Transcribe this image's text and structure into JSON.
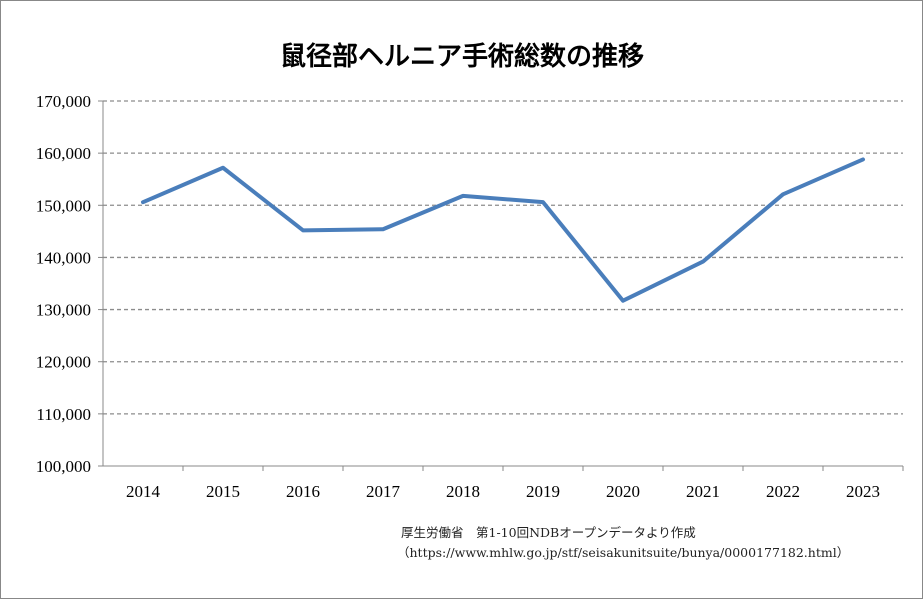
{
  "chart_data": {
    "type": "line",
    "title": "鼠径部ヘルニア手術総数の推移",
    "xlabel": "",
    "ylabel": "",
    "categories": [
      "2014",
      "2015",
      "2016",
      "2017",
      "2018",
      "2019",
      "2020",
      "2021",
      "2022",
      "2023"
    ],
    "series": [
      {
        "values": [
          150600,
          157200,
          145200,
          145400,
          151800,
          150600,
          131700,
          139200,
          152100,
          158800
        ],
        "color": "#4a7ebb"
      }
    ],
    "ylim": [
      100000,
      170000
    ],
    "yticks": [
      100000,
      110000,
      120000,
      130000,
      140000,
      150000,
      160000,
      170000
    ],
    "ytick_labels": [
      "100,000",
      "110,000",
      "120,000",
      "130,000",
      "140,000",
      "150,000",
      "160,000",
      "170,000"
    ],
    "grid": "horizontal dashed",
    "legend": "none"
  },
  "source": {
    "line1": "厚生労働省　第1-10回NDBオープンデータより作成",
    "line2": "（https://www.mhlw.go.jp/stf/seisakunitsuite/bunya/0000177182.html）"
  }
}
